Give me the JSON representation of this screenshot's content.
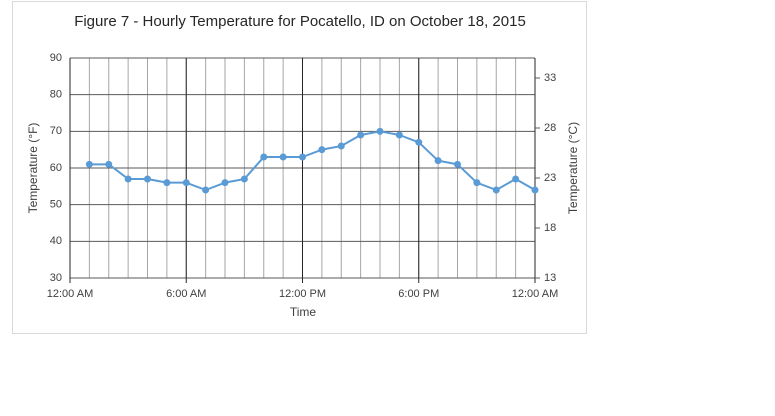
{
  "chart_data": {
    "type": "line",
    "title": "Figure 7 - Hourly Temperature for Pocatello, ID on October 18, 2015",
    "x_label": "Time",
    "y_label": "Temperature (°F)",
    "y2_label": "Temperature (°C)",
    "x": [
      1,
      2,
      3,
      4,
      5,
      6,
      7,
      8,
      9,
      10,
      11,
      12,
      13,
      14,
      15,
      16,
      17,
      18,
      19,
      20,
      21,
      22,
      23,
      24
    ],
    "values": [
      61,
      61,
      57,
      57,
      56,
      56,
      54,
      56,
      57,
      63,
      63,
      63,
      65,
      66,
      69,
      70,
      69,
      67,
      62,
      61,
      56,
      54,
      57,
      54
    ],
    "color": "#5b9bd5",
    "xlim": [
      0,
      24
    ],
    "xticks": [
      {
        "value": 0,
        "label": "12:00 AM"
      },
      {
        "value": 6,
        "label": "6:00 AM"
      },
      {
        "value": 12,
        "label": "12:00 PM"
      },
      {
        "value": 18,
        "label": "6:00 PM"
      },
      {
        "value": 24,
        "label": "12:00 AM"
      }
    ],
    "ylim": [
      30,
      90
    ],
    "yticks": [
      30,
      40,
      50,
      60,
      70,
      80,
      90
    ],
    "y2lim": [
      13,
      35
    ],
    "y2ticks": [
      13,
      18,
      23,
      28,
      33
    ],
    "grid": true
  }
}
